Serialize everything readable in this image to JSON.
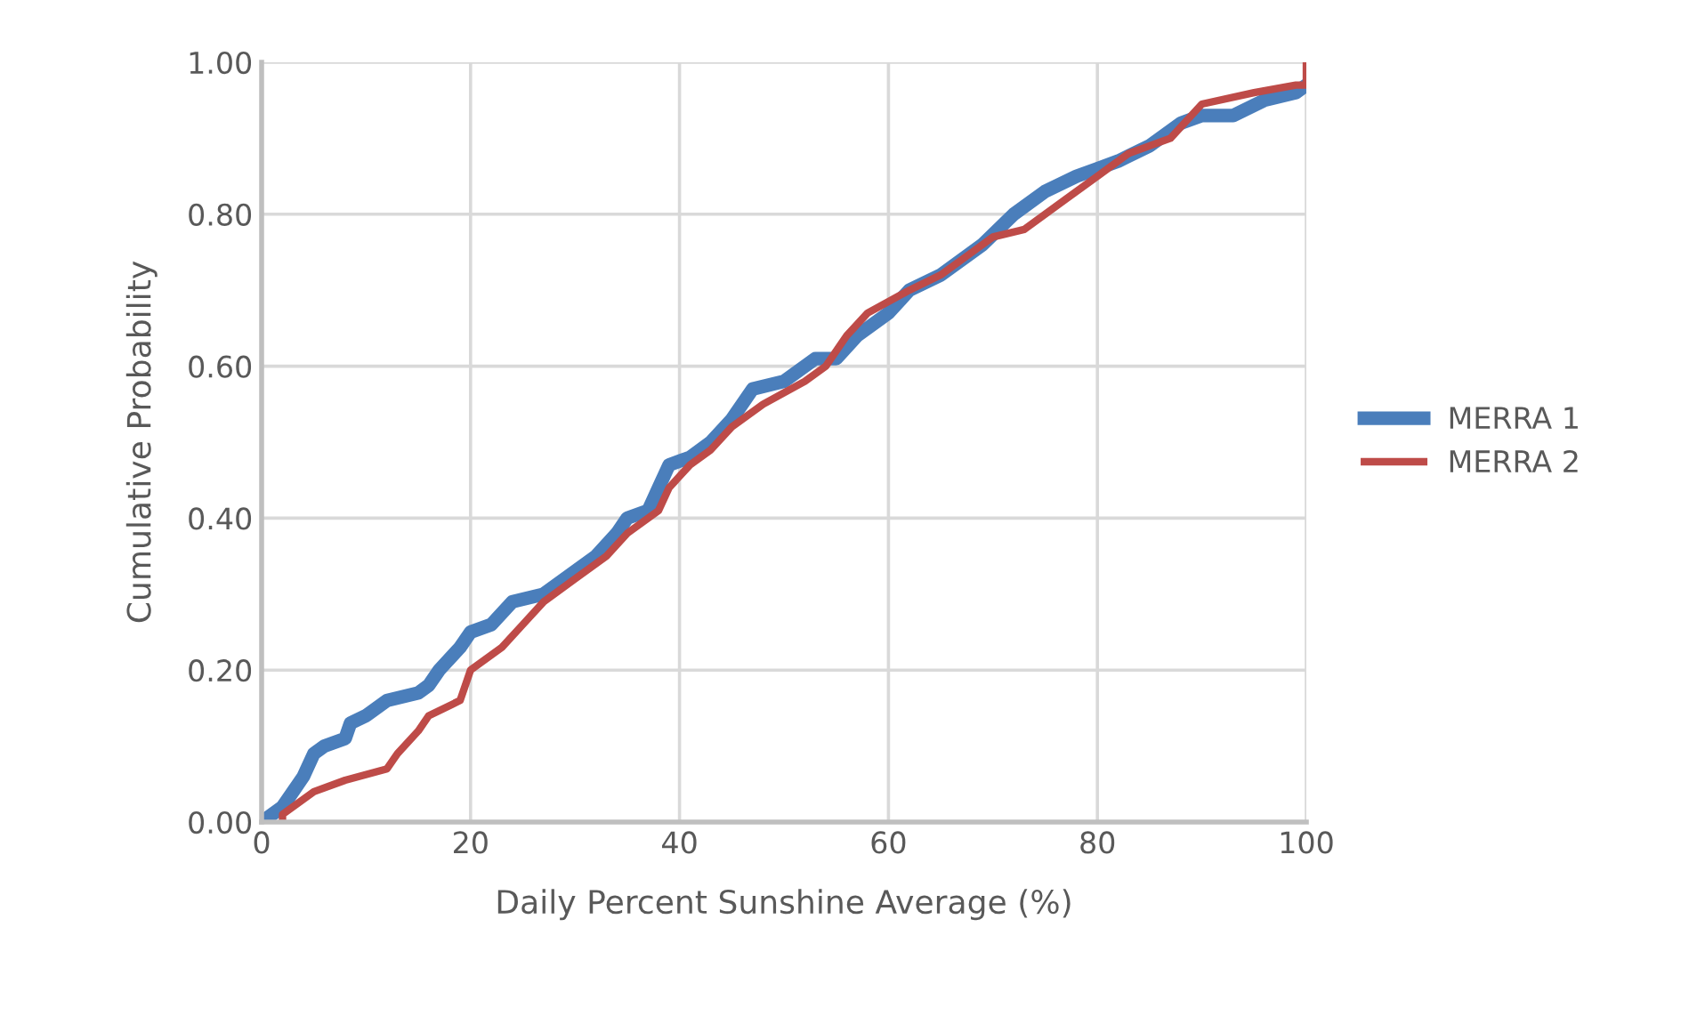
{
  "chart_data": {
    "type": "line",
    "xlabel": "Daily Percent Sunshine Average (%)",
    "ylabel": "Cumulative Probability",
    "xlim": [
      0,
      100
    ],
    "xticks": [
      0,
      20,
      40,
      60,
      80,
      100
    ],
    "ylim": [
      0,
      1
    ],
    "yticks": [
      {
        "value": 0,
        "label": "0.00"
      },
      {
        "value": 0.2,
        "label": "0.20"
      },
      {
        "value": 0.4,
        "label": "0.40"
      },
      {
        "value": 0.6,
        "label": "0.60"
      },
      {
        "value": 0.8,
        "label": "0.80"
      },
      {
        "value": 1,
        "label": "1.00"
      }
    ],
    "grid": true,
    "legend": "right",
    "marker": "none",
    "line_style": "solid",
    "series": [
      {
        "name": "MERRA 1",
        "color": "#4a7ebb",
        "x": [
          0,
          1,
          2,
          3,
          4,
          5,
          6,
          8,
          8.5,
          10,
          12,
          15,
          16,
          17,
          19,
          20,
          22,
          24,
          27,
          30,
          32,
          34,
          35,
          37,
          38,
          39,
          41,
          43,
          45,
          47,
          50,
          53,
          55,
          57,
          60,
          62,
          65,
          69,
          72,
          75,
          78,
          80,
          82,
          85,
          88,
          90,
          93,
          96,
          99,
          100
        ],
        "values": [
          0,
          0.01,
          0.02,
          0.04,
          0.06,
          0.09,
          0.1,
          0.11,
          0.13,
          0.14,
          0.16,
          0.17,
          0.18,
          0.2,
          0.23,
          0.25,
          0.26,
          0.29,
          0.3,
          0.33,
          0.35,
          0.38,
          0.4,
          0.41,
          0.44,
          0.47,
          0.48,
          0.5,
          0.53,
          0.57,
          0.58,
          0.61,
          0.61,
          0.64,
          0.67,
          0.7,
          0.72,
          0.76,
          0.8,
          0.83,
          0.85,
          0.86,
          0.87,
          0.89,
          0.92,
          0.93,
          0.93,
          0.95,
          0.96,
          0.97
        ]
      },
      {
        "name": "MERRA 2",
        "color": "#be4b48",
        "x": [
          2,
          2,
          4,
          5,
          8,
          12,
          13,
          15,
          16,
          19,
          20,
          23,
          25,
          27,
          30,
          33,
          35,
          38,
          39,
          41,
          43,
          45,
          48,
          52,
          54,
          56,
          58,
          62,
          65,
          68,
          70,
          73,
          77,
          80,
          83,
          87,
          89,
          90,
          95,
          99,
          100,
          100
        ],
        "values": [
          0,
          0.01,
          0.03,
          0.04,
          0.055,
          0.07,
          0.09,
          0.12,
          0.14,
          0.16,
          0.2,
          0.23,
          0.26,
          0.29,
          0.32,
          0.35,
          0.38,
          0.41,
          0.44,
          0.47,
          0.49,
          0.52,
          0.55,
          0.58,
          0.6,
          0.64,
          0.67,
          0.7,
          0.72,
          0.75,
          0.77,
          0.78,
          0.82,
          0.85,
          0.88,
          0.9,
          0.93,
          0.945,
          0.96,
          0.97,
          0.97,
          1.0
        ]
      }
    ]
  }
}
